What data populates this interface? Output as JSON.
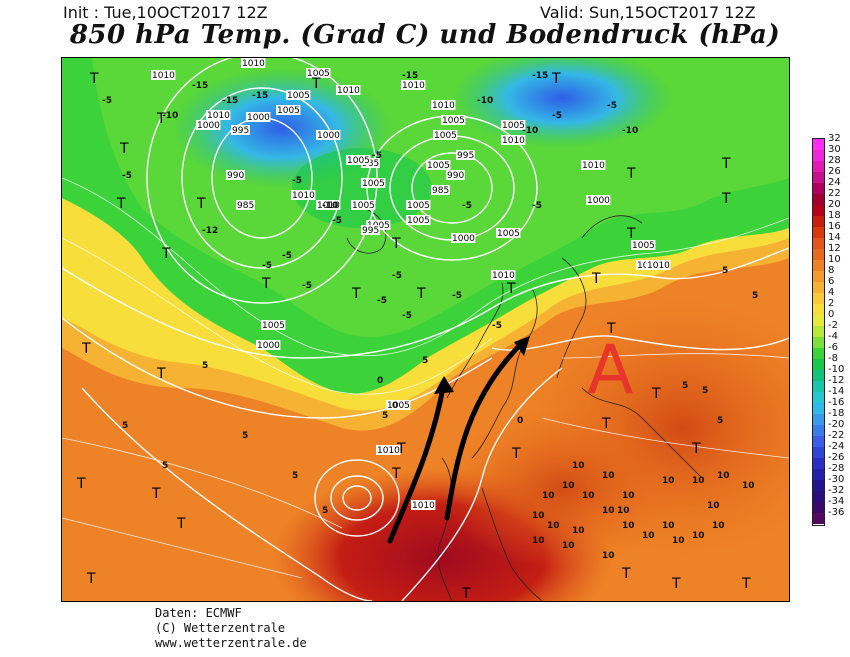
{
  "header": {
    "init": "Init : Tue,10OCT2017 12Z",
    "valid": "Valid: Sun,15OCT2017 12Z",
    "title": "850 hPa Temp. (Grad C) und Bodendruck (hPa)"
  },
  "map": {
    "high_marker": "A",
    "high_marker_color": "#e8352a",
    "arrow_color": "#000000",
    "isobar_color": "#ffffff",
    "temp_line_color": "#ffffff",
    "isobar_labels": [
      "1010",
      "1005",
      "1005",
      "1010",
      "1010",
      "1005",
      "1010",
      "1010",
      "1000",
      "995",
      "1000",
      "990",
      "985",
      "985",
      "1000",
      "1005",
      "1005",
      "1005",
      "1010",
      "1005",
      "1005",
      "995",
      "990",
      "985",
      "1000",
      "1005",
      "1010",
      "1010",
      "1000",
      "1005",
      "1000",
      "1005",
      "1000",
      "1005",
      "1010",
      "1010",
      "1010",
      "1010",
      "1005",
      "1005",
      "995",
      "1005",
      "1010",
      "1005",
      "1005",
      "1010"
    ],
    "temp_labels": [
      "-5",
      "-15",
      "-15",
      "-15",
      "-10",
      "-5",
      "-5",
      "-10",
      "-5",
      "-5",
      "-15",
      "-10",
      "-15",
      "-5",
      "-5",
      "-10",
      "-12",
      "-5",
      "-5",
      "-5",
      "-5",
      "-5",
      "-5",
      "-5",
      "-5",
      "-10",
      "-5",
      "0",
      "5",
      "5",
      "0",
      "0",
      "5",
      "5",
      "5",
      "10",
      "10",
      "10",
      "10",
      "10",
      "10",
      "10",
      "10",
      "10",
      "10",
      "10",
      "10",
      "10",
      "10",
      "10",
      "10",
      "10",
      "10",
      "10",
      "10",
      "10",
      "10",
      "10",
      "10",
      "10",
      "5",
      "5",
      "5",
      "5",
      "5",
      "5",
      "-5",
      "5",
      "5"
    ],
    "t_marker": "T"
  },
  "legend": {
    "values": [
      "32",
      "30",
      "28",
      "26",
      "24",
      "22",
      "20",
      "18",
      "16",
      "14",
      "12",
      "10",
      "8",
      "6",
      "4",
      "2",
      "0",
      "-2",
      "-4",
      "-6",
      "-8",
      "-10",
      "-12",
      "-14",
      "-16",
      "-18",
      "-20",
      "-22",
      "-24",
      "-26",
      "-28",
      "-30",
      "-32",
      "-34",
      "-36"
    ],
    "colors": [
      "#ff2cf7",
      "#f027d6",
      "#e01cb4",
      "#c80f8d",
      "#b00064",
      "#a00030",
      "#b40018",
      "#c81e10",
      "#d83a10",
      "#e2541a",
      "#e86a20",
      "#ee8226",
      "#f29a2c",
      "#f6b232",
      "#fac83a",
      "#f8de3a",
      "#e6ea3a",
      "#b8e83a",
      "#7ede3a",
      "#3cd23a",
      "#18c84c",
      "#12c27a",
      "#18c6aa",
      "#24c8d0",
      "#30b8e6",
      "#3a9aea",
      "#3c7cea",
      "#3a5ee6",
      "#3244d8",
      "#2a30c6",
      "#2420ac",
      "#1e1494",
      "#2a0e7c",
      "#3a0a6a",
      "#500a5e"
    ]
  },
  "credits": {
    "line1": "Daten: ECMWF",
    "line2": "(C) Wetterzentrale",
    "line3": "www.wetterzentrale.de"
  }
}
